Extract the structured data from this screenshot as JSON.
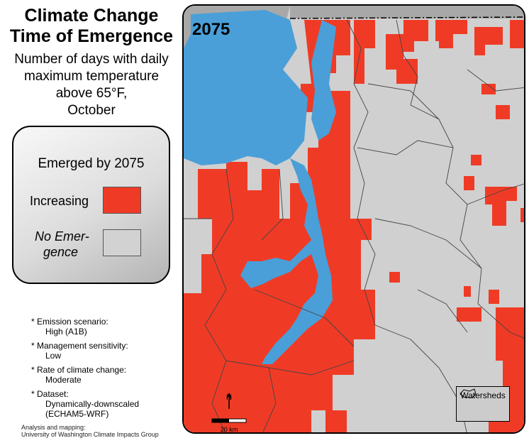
{
  "title": {
    "line1": "Climate Change",
    "line2": "Time of Emergence"
  },
  "subtitle": {
    "line1": "Number of days with daily",
    "line2": "maximum temperature",
    "line3": "above 65°F,",
    "line4": "October"
  },
  "legend": {
    "heading": "Emerged by 2075",
    "increasing_label": "Increasing",
    "increasing_color": "#ef3b26",
    "no_emergence_line1": "No Emer-",
    "no_emergence_line2": "gence",
    "no_emergence_color": "#d2d2d2"
  },
  "notes": [
    {
      "label": "* Emission scenario:",
      "value": "High (A1B)"
    },
    {
      "label": "* Management sensitivity:",
      "value": "Low"
    },
    {
      "label": "* Rate of climate change:",
      "value": "Moderate"
    },
    {
      "label": "* Dataset:",
      "value": "Dynamically-downscaled",
      "value2": "(ECHAM5-WRF)"
    }
  ],
  "credit": {
    "line1": "Analysis and mapping:",
    "line2": "University of Washington Climate Impacts Group"
  },
  "map": {
    "year": "2075",
    "watersheds_label": "Watersheds",
    "north_label": "N",
    "scale_label": "20 km",
    "water_color": "#4a9fd8",
    "land_outside_color": "#a8a8a8"
  }
}
